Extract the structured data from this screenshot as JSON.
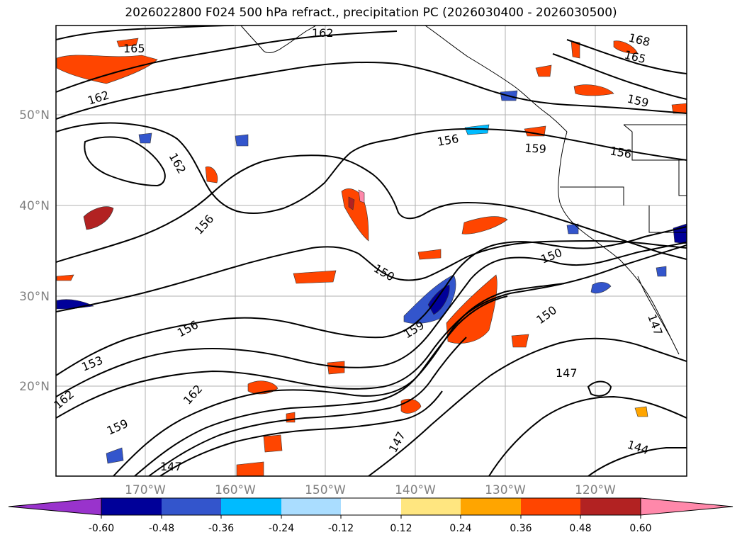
{
  "title": "2026022800 F024 500 hPa refract., precipitation PC (2026030400 - 2026030500)",
  "map": {
    "lat_labels": [
      "50°N",
      "40°N",
      "30°N",
      "20°N"
    ],
    "lon_labels": [
      "170°W",
      "160°W",
      "150°W",
      "140°W",
      "130°W",
      "120°W"
    ],
    "contour_labels": [
      "165",
      "162",
      "162",
      "168",
      "165",
      "159",
      "162",
      "156",
      "159",
      "156",
      "156",
      "150",
      "150",
      "150",
      "156",
      "153",
      "159",
      "162",
      "162",
      "159",
      "147",
      "147",
      "147",
      "144",
      "147"
    ],
    "colors": {
      "contour": "#000000",
      "coast": "#000000",
      "grid": "#b0b0b0"
    }
  },
  "colorbar": {
    "levels": [
      "-0.60",
      "-0.48",
      "-0.36",
      "-0.24",
      "-0.12",
      "0.12",
      "0.24",
      "0.36",
      "0.48",
      "0.60"
    ],
    "colors": [
      "#9933cc",
      "#000099",
      "#3355cc",
      "#00bbff",
      "#aaddff",
      "#ffffff",
      "#ffe680",
      "#ffa500",
      "#ff4500",
      "#b22222",
      "#ff88aa"
    ]
  }
}
